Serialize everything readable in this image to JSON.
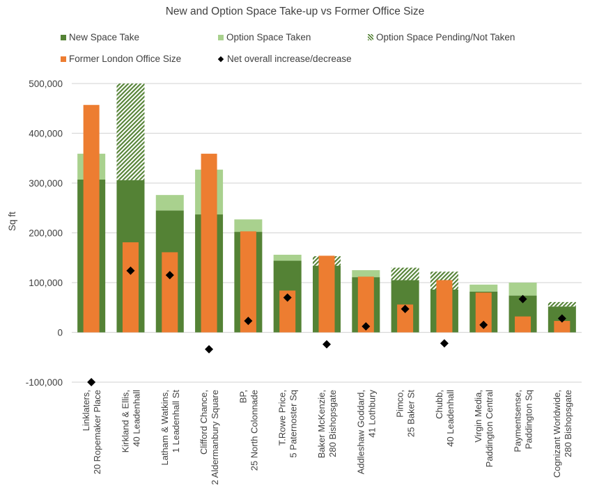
{
  "chart_data": {
    "type": "bar",
    "title": "New and Option Space Take-up vs Former Office Size",
    "xlabel": "",
    "ylabel": "Sq ft",
    "ylim": [
      -100000,
      500000
    ],
    "yticks": [
      -100000,
      0,
      100000,
      200000,
      300000,
      400000,
      500000
    ],
    "ytick_labels": [
      "-100,000",
      "0",
      "100,000",
      "200,000",
      "300,000",
      "400,000",
      "500,000"
    ],
    "grid": true,
    "legend_position": "top",
    "categories": [
      [
        "Linklaters,",
        "20 Ropemaker Place"
      ],
      [
        "Kirkland & Ellis,",
        "40 Leadenhall"
      ],
      [
        "Latham & Watkins,",
        "1 Leadenhall St"
      ],
      [
        "Clifford Chance,",
        "2 Aldermanbury Square"
      ],
      [
        "BP,",
        "25 North Colonnade"
      ],
      [
        "T.Rowe Price,",
        "5 Paternoster Sq"
      ],
      [
        "Baker McKenzie,",
        "280 Bishopsgate"
      ],
      [
        "Addleshaw Goddard,",
        "41 Lothbury"
      ],
      [
        "Pimco,",
        "25 Baker St"
      ],
      [
        "Chubb,",
        "40 Leadenhall"
      ],
      [
        "Virgin Media,",
        "Paddington Central"
      ],
      [
        "Paymentsense,",
        "Paddington Sq"
      ],
      [
        "Cognizant Worldwide,",
        "280 Bishopsgate"
      ]
    ],
    "series": [
      {
        "name": "New Space Take",
        "kind": "stacked-bar",
        "color": "#548235",
        "values": [
          307000,
          306000,
          245000,
          237000,
          202000,
          144000,
          134000,
          111000,
          105000,
          86000,
          82000,
          74000,
          52000
        ]
      },
      {
        "name": "Option Space Taken",
        "kind": "stacked-bar",
        "color": "#A9D18E",
        "values": [
          52000,
          0,
          31000,
          90000,
          25000,
          12000,
          0,
          14000,
          0,
          0,
          14000,
          26000,
          0
        ]
      },
      {
        "name": "Option Space Pending/Not Taken",
        "kind": "stacked-bar-hatched",
        "color": "#548235",
        "values": [
          0,
          194000,
          0,
          0,
          0,
          0,
          19000,
          0,
          25000,
          36000,
          0,
          0,
          9000
        ]
      },
      {
        "name": "Former London Office Size",
        "kind": "overlay-bar",
        "color": "#ED7D31",
        "values": [
          457000,
          181000,
          161000,
          359000,
          203000,
          84000,
          154000,
          112000,
          56000,
          105000,
          80000,
          32000,
          23000
        ]
      },
      {
        "name": "Net overall increase/decrease",
        "kind": "marker",
        "color": "#000000",
        "values": [
          -100000,
          124000,
          115000,
          -34000,
          23000,
          70000,
          -24000,
          12000,
          47000,
          -22000,
          15000,
          67000,
          28000
        ]
      }
    ]
  }
}
